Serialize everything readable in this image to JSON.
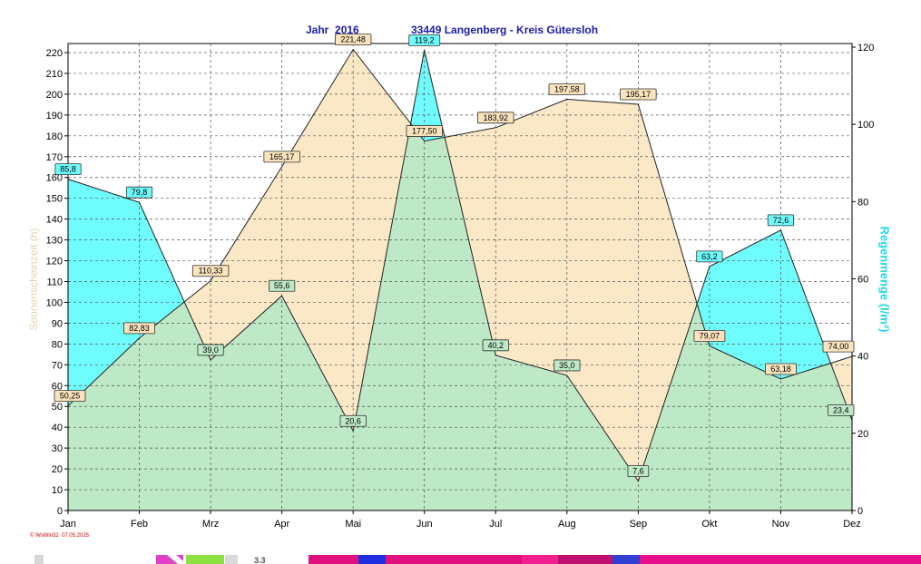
{
  "header": {
    "year_label": "Jahr  2016",
    "location_label": "33449 Langenberg - Kreis Gütersloh"
  },
  "footer": {
    "credit": "© WsWin32  07.05.2025"
  },
  "strip": {
    "label": "3.3"
  },
  "colors": {
    "sunshine_fill": "#fbe8c7",
    "rain_fill": "#6ffcfd",
    "overlap_fill": "#bde9c7",
    "sunshine_label": "#e9d2a9",
    "rain_label": "#22d8e8",
    "title": "#1b1baa"
  },
  "chart_data": {
    "type": "area",
    "categories": [
      "Jan",
      "Feb",
      "Mrz",
      "Apr",
      "Mai",
      "Jun",
      "Jul",
      "Aug",
      "Sep",
      "Okt",
      "Nov",
      "Dez"
    ],
    "series": [
      {
        "name": "Sonnenscheinzeit",
        "axis": "left",
        "values": [
          50.25,
          82.83,
          110.33,
          165.17,
          221.48,
          177.5,
          183.92,
          197.58,
          195.17,
          79.07,
          63.18,
          74.0
        ],
        "labels": [
          "50,25",
          "82,83",
          "110,33",
          "165,17",
          "221,48",
          "177,50",
          "183,92",
          "197,58",
          "195,17",
          "79,07",
          "63,18",
          "74,00"
        ]
      },
      {
        "name": "Regenmenge",
        "axis": "right",
        "values": [
          85.8,
          79.8,
          39.0,
          55.6,
          20.6,
          119.2,
          40.2,
          35.0,
          7.6,
          63.2,
          72.6,
          23.4
        ],
        "labels": [
          "85,8",
          "79,8",
          "39,0",
          "55,6",
          "20,6",
          "119,2",
          "40,2",
          "35,0",
          "7,6",
          "63,2",
          "72,6",
          "23,4"
        ]
      }
    ],
    "yaxis_left": {
      "label": "Sonnenscheinzeit  (h)",
      "range": [
        0,
        230
      ],
      "ticks": [
        "0",
        "10",
        "20",
        "30",
        "40",
        "50",
        "60",
        "70",
        "80",
        "90",
        "100",
        "110",
        "120",
        "130",
        "140",
        "150",
        "160",
        "170",
        "180",
        "190",
        "200",
        "210",
        "220"
      ]
    },
    "yaxis_right": {
      "label": "Regenmenge  (l/m²)",
      "range": [
        0,
        120
      ],
      "ticks": [
        "0",
        "20",
        "40",
        "60",
        "80",
        "100",
        "120"
      ]
    },
    "grid": true
  }
}
